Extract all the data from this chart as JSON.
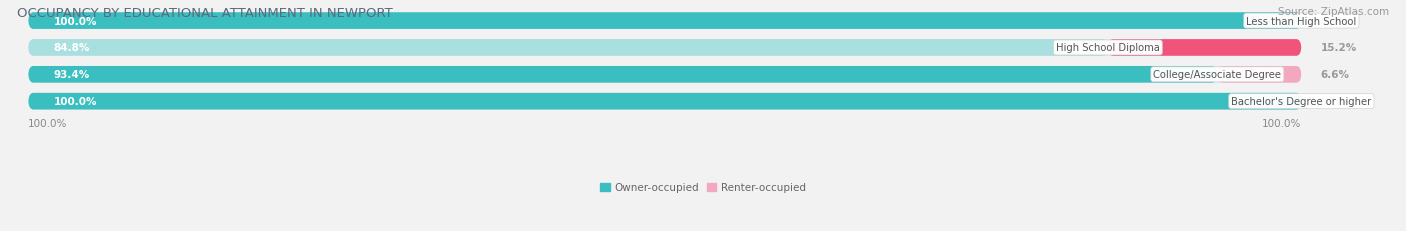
{
  "title": "OCCUPANCY BY EDUCATIONAL ATTAINMENT IN NEWPORT",
  "source": "Source: ZipAtlas.com",
  "categories": [
    "Less than High School",
    "High School Diploma",
    "College/Associate Degree",
    "Bachelor's Degree or higher"
  ],
  "owner_values": [
    100.0,
    84.8,
    93.4,
    100.0
  ],
  "renter_values": [
    0.0,
    15.2,
    6.6,
    0.0
  ],
  "owner_color": "#3bbec0",
  "owner_color_light": "#aadfe0",
  "renter_color_row0": "#f4a8bf",
  "renter_color_row1": "#f0547a",
  "renter_color_row2": "#f4a8bf",
  "renter_color_row3": "#f4a8bf",
  "bar_bg_color": "#e4e4e8",
  "bg_color": "#f2f2f2",
  "bar_height": 0.62,
  "owner_label_color": "white",
  "renter_label_color": "#999999",
  "category_label_color": "#555555",
  "title_color": "#5a6a7a",
  "source_color": "#999999",
  "title_fontsize": 9.5,
  "label_fontsize": 7.5,
  "tick_fontsize": 7.5,
  "source_fontsize": 7.5,
  "legend_label_color": "#666666"
}
